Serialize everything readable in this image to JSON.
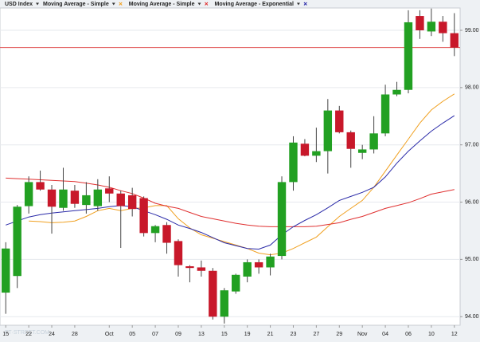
{
  "chart_data": {
    "type": "candlestick",
    "name": "USD Index",
    "up_color": "#22a022",
    "down_color": "#c8182a",
    "categories": [
      "15",
      null,
      "22",
      null,
      "24",
      null,
      "28",
      null,
      null,
      "Oct",
      null,
      "05",
      null,
      "07",
      null,
      "09",
      null,
      "13",
      null,
      "15",
      null,
      "19",
      null,
      "21",
      null,
      "23",
      null,
      "27",
      null,
      "29",
      null,
      "Nov",
      null,
      "04",
      null,
      "06",
      null,
      "10",
      null,
      "12"
    ],
    "open": [
      94.42,
      94.71,
      95.93,
      96.35,
      96.22,
      95.9,
      96.2,
      95.95,
      95.93,
      96.24,
      96.15,
      96.12,
      96.07,
      95.46,
      95.6,
      95.32,
      94.88,
      94.86,
      94.8,
      94.0,
      94.44,
      94.7,
      94.95,
      94.86,
      95.06,
      96.35,
      97.02,
      96.81,
      96.89,
      97.6,
      97.22,
      96.86,
      96.92,
      97.2,
      97.88,
      97.96,
      99.25,
      98.98,
      99.15,
      98.95
    ],
    "high": [
      95.3,
      95.95,
      96.45,
      96.55,
      96.3,
      96.6,
      96.3,
      96.35,
      96.4,
      96.45,
      96.2,
      96.25,
      96.1,
      95.6,
      95.65,
      95.35,
      94.9,
      94.98,
      94.85,
      94.5,
      94.75,
      95.0,
      95.0,
      95.1,
      96.45,
      97.15,
      97.1,
      97.3,
      97.8,
      97.68,
      97.25,
      97.0,
      97.5,
      98.05,
      98.1,
      99.35,
      99.35,
      99.38,
      99.25,
      99.3
    ],
    "low": [
      94.05,
      94.5,
      95.8,
      96.2,
      95.45,
      95.85,
      95.9,
      95.8,
      95.85,
      96.0,
      95.2,
      95.75,
      95.4,
      95.3,
      95.1,
      94.7,
      94.6,
      94.7,
      93.95,
      93.88,
      94.4,
      94.6,
      94.75,
      94.72,
      95.0,
      96.2,
      96.8,
      96.7,
      96.5,
      97.2,
      96.6,
      96.75,
      96.85,
      97.15,
      97.85,
      97.9,
      98.85,
      98.9,
      98.8,
      98.55
    ],
    "close": [
      95.19,
      95.92,
      96.35,
      96.22,
      95.92,
      96.22,
      95.97,
      96.12,
      96.22,
      96.15,
      95.93,
      95.88,
      95.46,
      95.58,
      95.29,
      94.9,
      94.85,
      94.8,
      94.0,
      94.46,
      94.73,
      94.95,
      94.86,
      95.05,
      96.35,
      97.04,
      96.81,
      96.89,
      97.6,
      97.22,
      96.93,
      96.92,
      97.2,
      97.88,
      97.96,
      99.14,
      99.0,
      99.15,
      98.95,
      98.7
    ],
    "overlays": [
      {
        "name": "Moving Average - Simple",
        "color": "#f0a020",
        "values": [
          null,
          null,
          95.67,
          95.66,
          95.64,
          95.65,
          95.67,
          95.75,
          95.85,
          95.89,
          95.85,
          95.89,
          95.9,
          95.94,
          95.94,
          95.71,
          95.55,
          95.43,
          95.37,
          95.31,
          95.25,
          95.19,
          95.11,
          95.08,
          95.11,
          95.19,
          95.29,
          95.39,
          95.57,
          95.75,
          95.89,
          96.03,
          96.26,
          96.54,
          96.82,
          97.1,
          97.38,
          97.61,
          97.76,
          97.89
        ]
      },
      {
        "name": "Moving Average - Simple",
        "color": "#e03030",
        "values": [
          96.42,
          96.41,
          96.4,
          96.39,
          96.38,
          96.37,
          96.36,
          96.33,
          96.3,
          96.26,
          96.2,
          96.15,
          96.07,
          95.98,
          95.93,
          95.89,
          95.82,
          95.75,
          95.71,
          95.67,
          95.63,
          95.6,
          95.58,
          95.57,
          95.57,
          95.57,
          95.57,
          95.58,
          95.61,
          95.64,
          95.7,
          95.75,
          95.82,
          95.89,
          95.94,
          95.99,
          96.06,
          96.14,
          96.18,
          96.22
        ]
      },
      {
        "name": "Moving Average - Exponential",
        "color": "#2a2aa8",
        "values": [
          95.6,
          95.67,
          95.74,
          95.78,
          95.81,
          95.83,
          95.85,
          95.87,
          95.89,
          95.92,
          95.94,
          95.92,
          95.85,
          95.78,
          95.7,
          95.6,
          95.54,
          95.47,
          95.38,
          95.29,
          95.24,
          95.19,
          95.18,
          95.25,
          95.43,
          95.57,
          95.68,
          95.78,
          95.9,
          96.03,
          96.1,
          96.17,
          96.26,
          96.44,
          96.68,
          96.89,
          97.07,
          97.24,
          97.38,
          97.51
        ]
      }
    ],
    "last_price": 98.7,
    "last_price_color": "#e05050",
    "ylim": [
      93.85,
      99.39
    ],
    "yticks": [
      {
        "value": 94,
        "label": "94.00"
      },
      {
        "value": 95,
        "label": "95.00"
      },
      {
        "value": 96,
        "label": "96.00"
      },
      {
        "value": 97,
        "label": "97.00"
      },
      {
        "value": 98,
        "label": "98.00"
      },
      {
        "value": 99,
        "label": "99.00"
      }
    ],
    "grid": true,
    "watermark": "FT·STREET.COM"
  }
}
